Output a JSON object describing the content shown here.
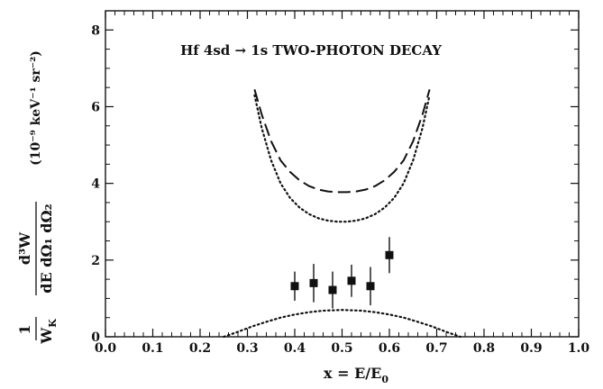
{
  "chart_data": {
    "type": "scatter",
    "title": "Hf  4sd → 1s  TWO-PHOTON DECAY",
    "xlabel": "x = E/E₀",
    "ylabel": "(1/W_K) d³W/(dE dΩ₁ dΩ₂)  (10⁻⁹ keV⁻¹ sr⁻²)",
    "ylabel_parts": {
      "frac1_num": "1",
      "frac1_den": "W",
      "frac1_den_sub": "K",
      "frac2_num": "d³W",
      "frac2_den": "dE dΩ₁ dΩ₂",
      "units": "(10⁻⁹ keV⁻¹ sr⁻²)"
    },
    "xlim": [
      0.0,
      1.0
    ],
    "ylim": [
      0,
      8.5
    ],
    "x_ticks": [
      "0.0",
      "0.1",
      "0.2",
      "0.3",
      "0.4",
      "0.5",
      "0.6",
      "0.7",
      "0.8",
      "0.9",
      "1.0"
    ],
    "y_ticks": [
      "0",
      "2",
      "4",
      "6",
      "8"
    ],
    "grid": false,
    "points": {
      "x": [
        0.4,
        0.44,
        0.48,
        0.52,
        0.56,
        0.6
      ],
      "y": [
        1.32,
        1.4,
        1.22,
        1.46,
        1.32,
        2.13
      ],
      "yerr": [
        0.38,
        0.5,
        0.48,
        0.42,
        0.5,
        0.47
      ]
    },
    "curves": [
      {
        "style": "dashed",
        "x": [
          0.315,
          0.33,
          0.35,
          0.37,
          0.39,
          0.41,
          0.43,
          0.45,
          0.47,
          0.49,
          0.5,
          0.51,
          0.53,
          0.55,
          0.57,
          0.59,
          0.61,
          0.63,
          0.65,
          0.67,
          0.685
        ],
        "y": [
          6.45,
          5.8,
          5.1,
          4.6,
          4.3,
          4.08,
          3.93,
          3.84,
          3.79,
          3.77,
          3.77,
          3.77,
          3.79,
          3.84,
          3.93,
          4.08,
          4.3,
          4.6,
          5.1,
          5.8,
          6.45
        ]
      },
      {
        "style": "dotted",
        "x": [
          0.315,
          0.33,
          0.35,
          0.37,
          0.39,
          0.41,
          0.43,
          0.45,
          0.47,
          0.49,
          0.5,
          0.51,
          0.53,
          0.55,
          0.57,
          0.59,
          0.61,
          0.63,
          0.65,
          0.67,
          0.685
        ],
        "y": [
          6.3,
          5.45,
          4.6,
          4.0,
          3.62,
          3.37,
          3.2,
          3.09,
          3.03,
          3.0,
          3.0,
          3.0,
          3.03,
          3.09,
          3.2,
          3.37,
          3.62,
          4.0,
          4.6,
          5.45,
          6.3
        ]
      },
      {
        "style": "dotted",
        "x": [
          0.25,
          0.28,
          0.31,
          0.34,
          0.37,
          0.4,
          0.43,
          0.46,
          0.5,
          0.54,
          0.57,
          0.6,
          0.63,
          0.66,
          0.69,
          0.72,
          0.75
        ],
        "y": [
          0.0,
          0.13,
          0.27,
          0.39,
          0.5,
          0.58,
          0.64,
          0.68,
          0.7,
          0.68,
          0.64,
          0.58,
          0.5,
          0.39,
          0.27,
          0.13,
          0.0
        ]
      }
    ]
  }
}
